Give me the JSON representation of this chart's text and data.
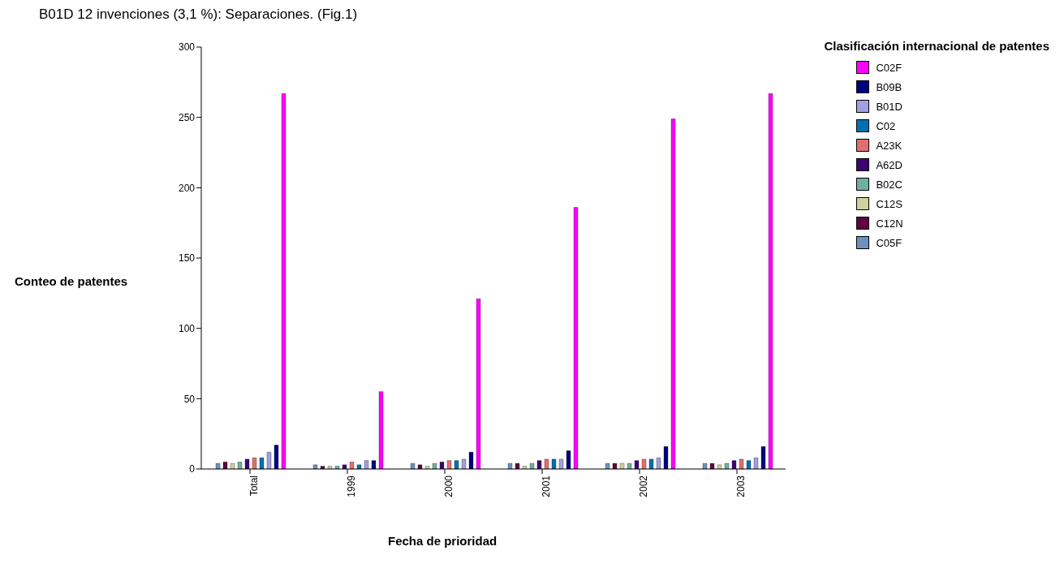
{
  "chart_data": {
    "type": "bar",
    "title": "B01D   12   invenciones (3,1 %): Separaciones. (Fig.1)",
    "xlabel": "Fecha de prioridad",
    "ylabel": "Conteo de patentes",
    "legend_title": "Clasificación internacional de patentes",
    "categories": [
      "Total",
      "1999",
      "2000",
      "2001",
      "2002",
      "2003"
    ],
    "series": [
      {
        "name": "C05F",
        "color": "#7090c0",
        "values": [
          4,
          3,
          4,
          4,
          4,
          4
        ]
      },
      {
        "name": "C12N",
        "color": "#600040",
        "values": [
          5,
          2,
          3,
          4,
          4,
          4
        ]
      },
      {
        "name": "C12S",
        "color": "#d0d0a0",
        "values": [
          4,
          2,
          2,
          2,
          4,
          3
        ]
      },
      {
        "name": "B02C",
        "color": "#70b0a0",
        "values": [
          5,
          2,
          4,
          4,
          4,
          4
        ]
      },
      {
        "name": "A62D",
        "color": "#400070",
        "values": [
          7,
          3,
          5,
          6,
          6,
          6
        ]
      },
      {
        "name": "A23K",
        "color": "#e07070",
        "values": [
          8,
          5,
          6,
          7,
          7,
          7
        ]
      },
      {
        "name": "C02",
        "color": "#0070b0",
        "values": [
          8,
          3,
          6,
          7,
          7,
          6
        ]
      },
      {
        "name": "B01D",
        "color": "#a0a0e0",
        "values": [
          12,
          6,
          7,
          7,
          8,
          8
        ]
      },
      {
        "name": "B09B",
        "color": "#000080",
        "values": [
          17,
          6,
          12,
          13,
          16,
          16
        ]
      },
      {
        "name": "C02F",
        "color": "#ff00ff",
        "values": [
          267,
          55,
          121,
          186,
          249,
          267
        ]
      }
    ],
    "ylim": [
      0,
      300
    ],
    "yticks": [
      0,
      50,
      100,
      150,
      200,
      250,
      300
    ],
    "grid": false,
    "legend": "right"
  }
}
